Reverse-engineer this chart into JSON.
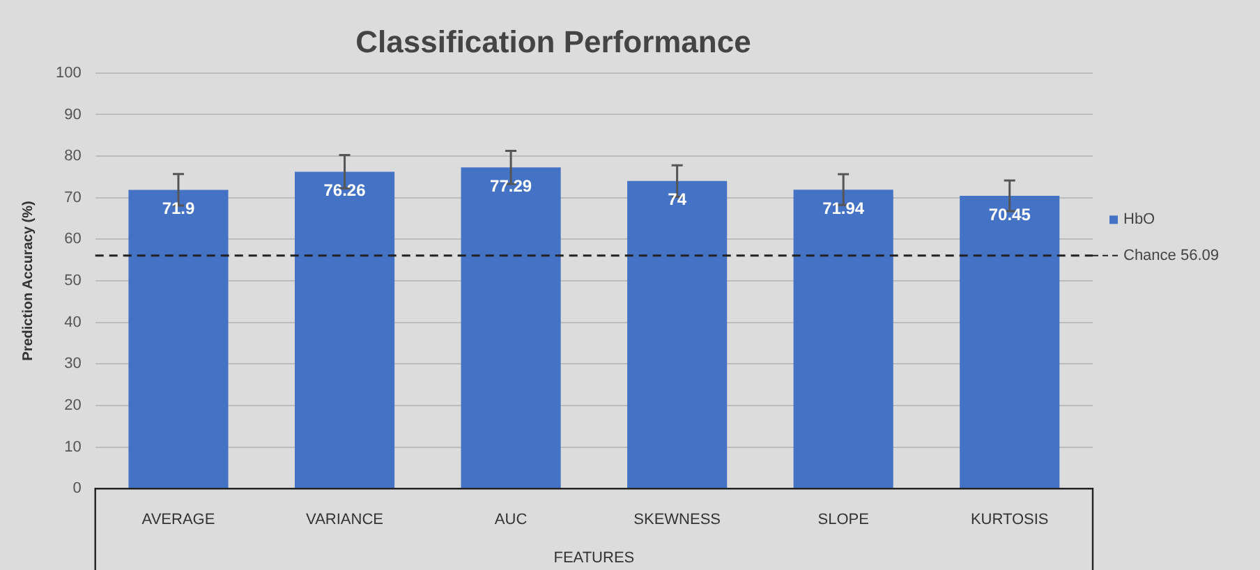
{
  "chart_data": {
    "type": "bar",
    "title": "Classification Performance",
    "xlabel": "FEATURES",
    "ylabel": "Prediction Accuracy (%)",
    "categories": [
      "AVERAGE",
      "VARIANCE",
      "AUC",
      "SKEWNESS",
      "SLOPE",
      "KURTOSIS"
    ],
    "series": [
      {
        "name": "HbO",
        "color": "#4472c4",
        "values": [
          71.9,
          76.26,
          77.29,
          74,
          71.94,
          70.45
        ],
        "errors": [
          3.8,
          4,
          4,
          3.8,
          3.7,
          3.7
        ]
      }
    ],
    "ylim": [
      0,
      100
    ],
    "yticks": [
      0,
      10,
      20,
      30,
      40,
      50,
      60,
      70,
      80,
      90,
      100
    ],
    "grid": "y",
    "legend": "right",
    "data_labels": true,
    "ref_lines": [
      {
        "axis": "y",
        "value": 56.09,
        "label": "Chance 56.09",
        "color": "#222222",
        "line_style": "dashed"
      }
    ]
  }
}
